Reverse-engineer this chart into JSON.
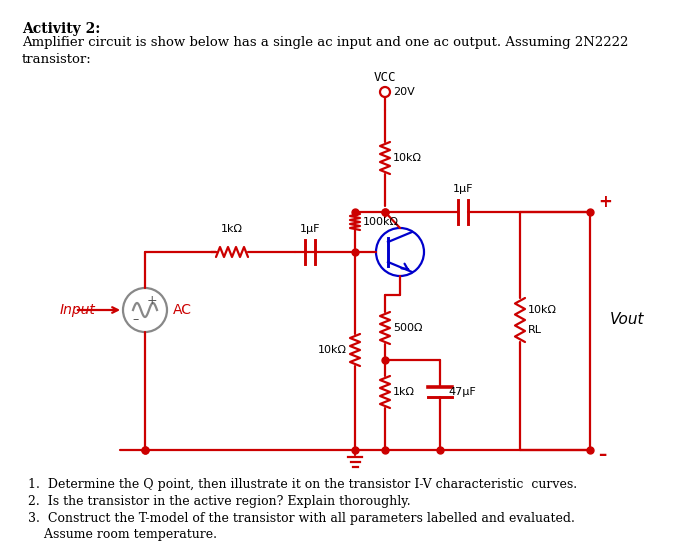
{
  "title_bold": "Activity 2:",
  "title_text": "Amplifier circuit is show below has a single ac input and one ac output. Assuming 2N2222\ntransistor:",
  "questions": [
    "1.  Determine the Q point, then illustrate it on the transistor I-V characteristic  curves.",
    "2.  Is the transistor in the active region? Explain thoroughly.",
    "3.  Construct the T-model of the transistor with all parameters labelled and evaluated.\n    Assume room temperature."
  ],
  "circuit_color": "#cc0000",
  "transistor_color": "#0000cc",
  "text_color": "#000000",
  "bg_color": "#ffffff",
  "vcc_label": "VCC",
  "vcc_voltage": "20V",
  "rc_label": "10kΩ",
  "rl_label": "RL",
  "rb1_label": "100kΩ",
  "rb2_label": "10kΩ",
  "re_label": "500Ω",
  "re2_label": "1kΩ",
  "rin_label": "1kΩ",
  "rout_label": "10kΩ",
  "cap1_label": "1μF",
  "cap2_label": "1μF",
  "cap3_label": "47μF",
  "input_label": "Input",
  "ac_label": "AC",
  "vout_label": "Vout"
}
